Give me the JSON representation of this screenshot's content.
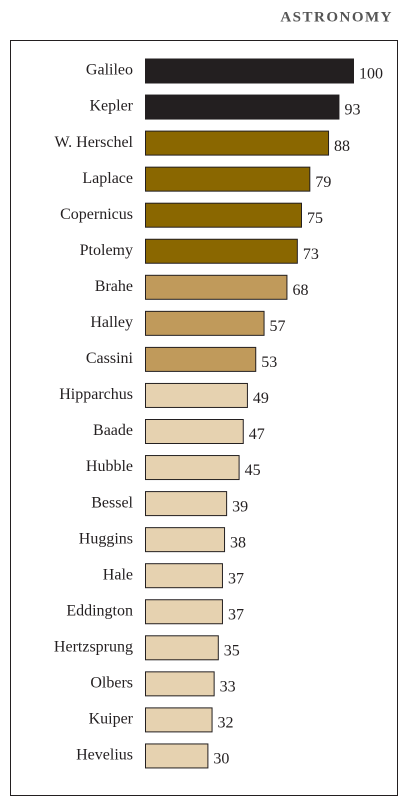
{
  "chart_data": {
    "type": "hbar",
    "title": "ASTRONOMY",
    "categories": [
      "Galileo",
      "Kepler",
      "W. Herschel",
      "Laplace",
      "Copernicus",
      "Ptolemy",
      "Brahe",
      "Halley",
      "Cassini",
      "Hipparchus",
      "Baade",
      "Hubble",
      "Bessel",
      "Huggins",
      "Hale",
      "Eddington",
      "Hertzsprung",
      "Olbers",
      "Kuiper",
      "Hevelius"
    ],
    "values": [
      100,
      93,
      88,
      79,
      75,
      73,
      68,
      57,
      53,
      49,
      47,
      45,
      39,
      38,
      37,
      37,
      35,
      33,
      32,
      30
    ],
    "colors": [
      "#231f20",
      "#231f20",
      "#8a6700",
      "#8a6700",
      "#8a6700",
      "#8a6700",
      "#c09a5b",
      "#c09a5b",
      "#c09a5b",
      "#e6d2b0",
      "#e6d2b0",
      "#e6d2b0",
      "#e6d2b0",
      "#e6d2b0",
      "#e6d2b0",
      "#e6d2b0",
      "#e6d2b0",
      "#e6d2b0",
      "#e6d2b0",
      "#e6d2b0"
    ]
  }
}
